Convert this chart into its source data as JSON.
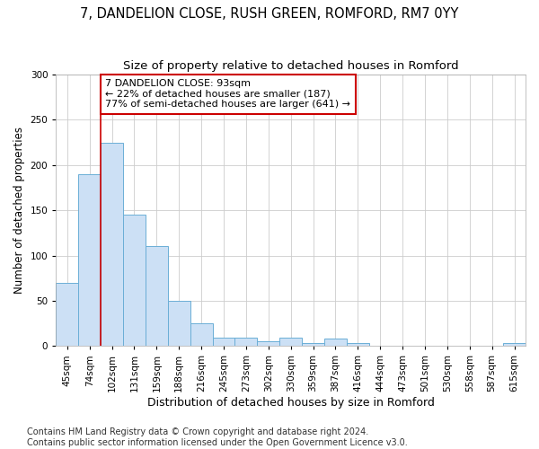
{
  "title1": "7, DANDELION CLOSE, RUSH GREEN, ROMFORD, RM7 0YY",
  "title2": "Size of property relative to detached houses in Romford",
  "xlabel": "Distribution of detached houses by size in Romford",
  "ylabel": "Number of detached properties",
  "categories": [
    "45sqm",
    "74sqm",
    "102sqm",
    "131sqm",
    "159sqm",
    "188sqm",
    "216sqm",
    "245sqm",
    "273sqm",
    "302sqm",
    "330sqm",
    "359sqm",
    "387sqm",
    "416sqm",
    "444sqm",
    "473sqm",
    "501sqm",
    "530sqm",
    "558sqm",
    "587sqm",
    "615sqm"
  ],
  "values": [
    70,
    190,
    225,
    145,
    110,
    50,
    25,
    9,
    9,
    5,
    9,
    3,
    8,
    3,
    0,
    0,
    0,
    0,
    0,
    0,
    3
  ],
  "bar_color": "#cce0f5",
  "bar_edge_color": "#6baed6",
  "vline_x_index": 1.5,
  "vline_color": "#cc0000",
  "annotation_text": "7 DANDELION CLOSE: 93sqm\n← 22% of detached houses are smaller (187)\n77% of semi-detached houses are larger (641) →",
  "annotation_box_color": "#ffffff",
  "annotation_box_edge": "#cc0000",
  "ylim": [
    0,
    300
  ],
  "yticks": [
    0,
    50,
    100,
    150,
    200,
    250,
    300
  ],
  "footer": "Contains HM Land Registry data © Crown copyright and database right 2024.\nContains public sector information licensed under the Open Government Licence v3.0.",
  "title1_fontsize": 10.5,
  "title2_fontsize": 9.5,
  "xlabel_fontsize": 9,
  "ylabel_fontsize": 8.5,
  "tick_fontsize": 7.5,
  "annotation_fontsize": 8,
  "footer_fontsize": 7,
  "grid_color": "#cccccc",
  "background_color": "#ffffff",
  "fig_background": "#ffffff"
}
